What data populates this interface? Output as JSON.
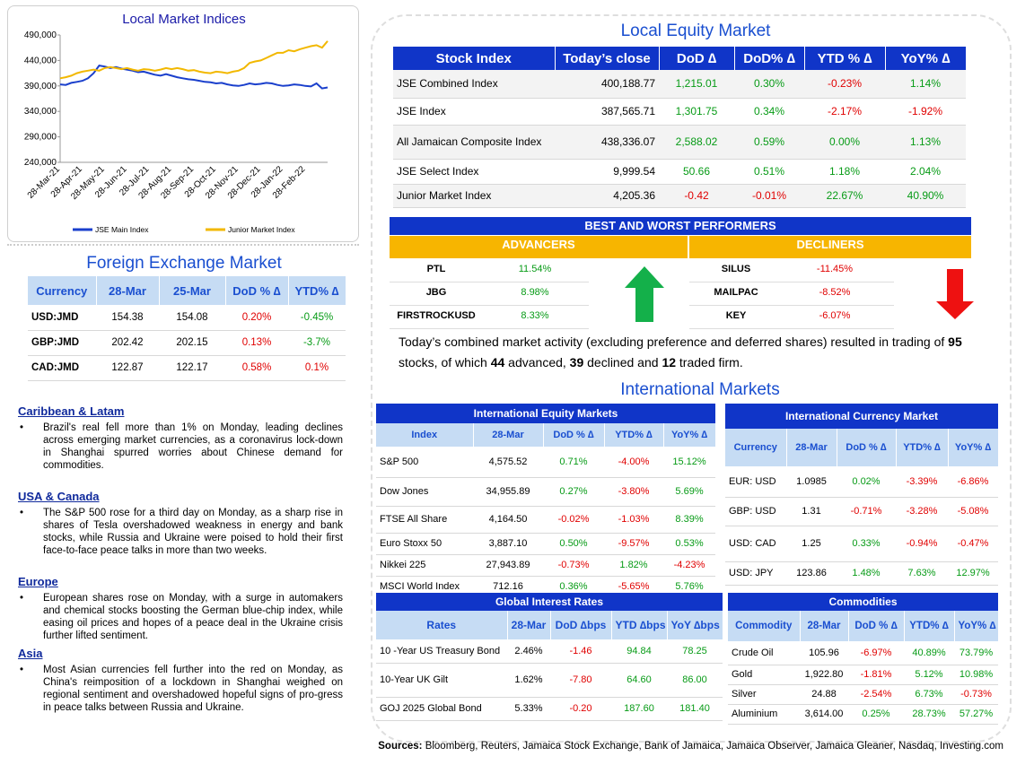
{
  "chart_data": {
    "type": "line",
    "title": "Local Market Indices",
    "categories": [
      "28-Mar-21",
      null,
      null,
      null,
      "28-Apr-21",
      null,
      null,
      null,
      "28-May-21",
      null,
      null,
      null,
      "28-Jun-21",
      null,
      null,
      null,
      "28-Jul-21",
      null,
      null,
      null,
      "28-Aug-21",
      null,
      null,
      null,
      "28-Sep-21",
      null,
      null,
      null,
      "28-Oct-21",
      null,
      null,
      null,
      "28-Nov-21",
      null,
      null,
      null,
      "28-Dec-21",
      null,
      null,
      null,
      "28-Jan-22",
      null,
      null,
      null,
      "28-Feb-22",
      null,
      null,
      null,
      null
    ],
    "series": [
      {
        "name": "JSE Main Index",
        "color": "#1a3fcc",
        "values": [
          393000,
          392000,
          396000,
          398000,
          400000,
          405000,
          415000,
          430000,
          428000,
          425000,
          427000,
          424000,
          422000,
          420000,
          417000,
          418000,
          415000,
          412000,
          410000,
          413000,
          410000,
          407000,
          405000,
          403000,
          402000,
          400000,
          398000,
          397000,
          395000,
          396000,
          393000,
          391000,
          390000,
          392000,
          395000,
          393000,
          394000,
          396000,
          395000,
          392000,
          390000,
          391000,
          393000,
          392000,
          390000,
          389000,
          395000,
          385000,
          387000
        ]
      },
      {
        "name": "Junior Market Index",
        "color": "#f2b800",
        "values": [
          405000,
          407000,
          410000,
          415000,
          418000,
          420000,
          422000,
          420000,
          425000,
          427000,
          425000,
          423000,
          425000,
          422000,
          420000,
          423000,
          422000,
          420000,
          422000,
          425000,
          423000,
          425000,
          423000,
          420000,
          421000,
          418000,
          416000,
          415000,
          418000,
          417000,
          415000,
          418000,
          420000,
          425000,
          435000,
          438000,
          440000,
          445000,
          450000,
          455000,
          455000,
          460000,
          458000,
          462000,
          465000,
          468000,
          470000,
          465000,
          478000
        ]
      }
    ],
    "ylim": [
      240000,
      490000
    ],
    "yticks": [
      {
        "value": 240000,
        "label": "240,000"
      },
      {
        "value": 290000,
        "label": "290,000"
      },
      {
        "value": 340000,
        "label": "340,000"
      },
      {
        "value": 390000,
        "label": "390,000"
      },
      {
        "value": 440000,
        "label": "440,000"
      },
      {
        "value": 490000,
        "label": "490,000"
      }
    ],
    "grid": false,
    "legend": "bottom"
  },
  "local_equity": {
    "title": "Local Equity Market",
    "columns": [
      "Stock Index",
      "Today’s close",
      "DoD  ∆",
      "DoD% ∆",
      "YTD % ∆",
      "YoY% ∆"
    ],
    "rows": [
      [
        "JSE Combined Index",
        "400,188.77",
        "1,215.01",
        "0.30%",
        "-0.23%",
        "1.14%"
      ],
      [
        "JSE Index",
        "387,565.71",
        "1,301.75",
        "0.34%",
        "-2.17%",
        "-1.92%"
      ],
      [
        "All Jamaican Composite Index",
        "438,336.07",
        "2,588.02",
        "0.59%",
        "0.00%",
        "1.13%"
      ],
      [
        "JSE Select Index",
        "9,999.54",
        "50.66",
        "0.51%",
        "1.18%",
        "2.04%"
      ],
      [
        "Junior Market Index",
        "4,205.36",
        "-0.42",
        "-0.01%",
        "22.67%",
        "40.90%"
      ]
    ]
  },
  "performers": {
    "title": "BEST AND WORST PERFORMERS",
    "advancers_label": "ADVANCERS",
    "decliners_label": "DECLINERS",
    "advancers": [
      [
        "PTL",
        "11.54%"
      ],
      [
        "JBG",
        "8.98%"
      ],
      [
        "FIRSTROCKUSD",
        "8.33%"
      ]
    ],
    "decliners": [
      [
        "SILUS",
        "-11.45%"
      ],
      [
        "MAILPAC",
        "-8.52%"
      ],
      [
        "KEY",
        "-6.07%"
      ]
    ]
  },
  "summary": [
    "Today’s combined market activity (excluding preference and deferred shares) resulted in trading of ",
    95,
    " stocks, of which ",
    44,
    " advanced, ",
    39,
    " declined and ",
    12,
    " traded firm."
  ],
  "fx": {
    "title": "Foreign Exchange Market",
    "columns": [
      "Currency",
      "28-Mar",
      "25-Mar",
      "DoD % ∆",
      "YTD% ∆"
    ],
    "rows": [
      [
        "USD:JMD",
        "154.38",
        "154.08",
        "0.20%",
        "-0.45%"
      ],
      [
        "GBP:JMD",
        "202.42",
        "202.15",
        "0.13%",
        "-3.7%"
      ],
      [
        "CAD:JMD",
        "122.87",
        "122.17",
        "0.58%",
        "0.1%"
      ]
    ]
  },
  "news": [
    {
      "heading": "Caribbean & Latam",
      "text": "Brazil's real fell more than 1% on Monday, leading declines across emerging market currencies, as a coronavirus lock-down in Shanghai spurred worries about Chinese demand for commodities."
    },
    {
      "heading": "USA & Canada",
      "text": "The S&P 500 rose for a third day on Monday, as a sharp rise in shares of Tesla overshadowed weakness in energy and bank stocks, while Russia and Ukraine were poised to hold their first face-to-face peace talks in more than two weeks."
    },
    {
      "heading": "Europe",
      "text": "European shares rose on Monday, with a surge in automakers and chemical stocks boosting the German blue-chip index, while easing oil prices and hopes of a peace deal in the Ukraine crisis further lifted sentiment."
    },
    {
      "heading": "Asia",
      "text": "Most Asian currencies fell further into the red on Monday, as China's reimposition of a lockdown in Shanghai weighed on regional sentiment and overshadowed hopeful signs of pro-gress in peace talks between Russia and Ukraine."
    }
  ],
  "international": {
    "title": "International Markets",
    "equity": {
      "title": "International Equity Markets",
      "columns": [
        "Index",
        "28-Mar",
        "DoD % ∆",
        "YTD% ∆",
        "YoY% ∆"
      ],
      "rows": [
        [
          "S&P 500",
          "4,575.52",
          "0.71%",
          "-4.00%",
          "15.12%"
        ],
        [
          "Dow Jones",
          "34,955.89",
          "0.27%",
          "-3.80%",
          "5.69%"
        ],
        [
          "FTSE All Share",
          "4,164.50",
          "-0.02%",
          "-1.03%",
          "8.39%"
        ],
        [
          "Euro Stoxx 50",
          "3,887.10",
          "0.50%",
          "-9.57%",
          "0.53%"
        ],
        [
          "Nikkei 225",
          "27,943.89",
          "-0.73%",
          "1.82%",
          "-4.23%"
        ],
        [
          "MSCI World Index",
          "712.16",
          "0.36%",
          "-5.65%",
          "5.76%"
        ]
      ]
    },
    "currency": {
      "title": "International Currency Market",
      "columns": [
        "Currency",
        "28-Mar",
        "DoD % ∆",
        "YTD% ∆",
        "YoY% ∆"
      ],
      "rows": [
        [
          "EUR: USD",
          "1.0985",
          "0.02%",
          "-3.39%",
          "-6.86%"
        ],
        [
          "GBP: USD",
          "1.31",
          "-0.71%",
          "-3.28%",
          "-5.08%"
        ],
        [
          "USD: CAD",
          "1.25",
          "0.33%",
          "-0.94%",
          "-0.47%"
        ],
        [
          "USD: JPY",
          "123.86",
          "1.48%",
          "7.63%",
          "12.97%"
        ]
      ]
    },
    "rates": {
      "title": "Global Interest Rates",
      "columns": [
        "Rates",
        "28-Mar",
        "DoD ∆bps",
        "YTD ∆bps",
        "YoY ∆bps"
      ],
      "rows": [
        [
          "10 -Year US Treasury Bond",
          "2.46%",
          "-1.46",
          "94.84",
          "78.25"
        ],
        [
          "10-Year UK Gilt",
          "1.62%",
          "-7.80",
          "64.60",
          "86.00"
        ],
        [
          "GOJ 2025 Global Bond",
          "5.33%",
          "-0.20",
          "187.60",
          "181.40"
        ]
      ]
    },
    "commodities": {
      "title": "Commodities",
      "columns": [
        "Commodity",
        "28-Mar",
        "DoD % ∆",
        "YTD% ∆",
        "YoY% ∆"
      ],
      "rows": [
        [
          "Crude Oil",
          "105.96",
          "-6.97%",
          "40.89%",
          "73.79%"
        ],
        [
          "Gold",
          "1,922.80",
          "-1.81%",
          "5.12%",
          "10.98%"
        ],
        [
          "Silver",
          "24.88",
          "-2.54%",
          "6.73%",
          "-0.73%"
        ],
        [
          "Aluminium",
          "3,614.00",
          "0.25%",
          "28.73%",
          "57.27%"
        ]
      ]
    }
  },
  "sources": {
    "label": "Sources:",
    "text": "Bloomberg, Reuters, Jamaica Stock Exchange, Bank of Jamaica, Jamaica Observer, Jamaica Gleaner, Nasdaq, Investing.com"
  }
}
